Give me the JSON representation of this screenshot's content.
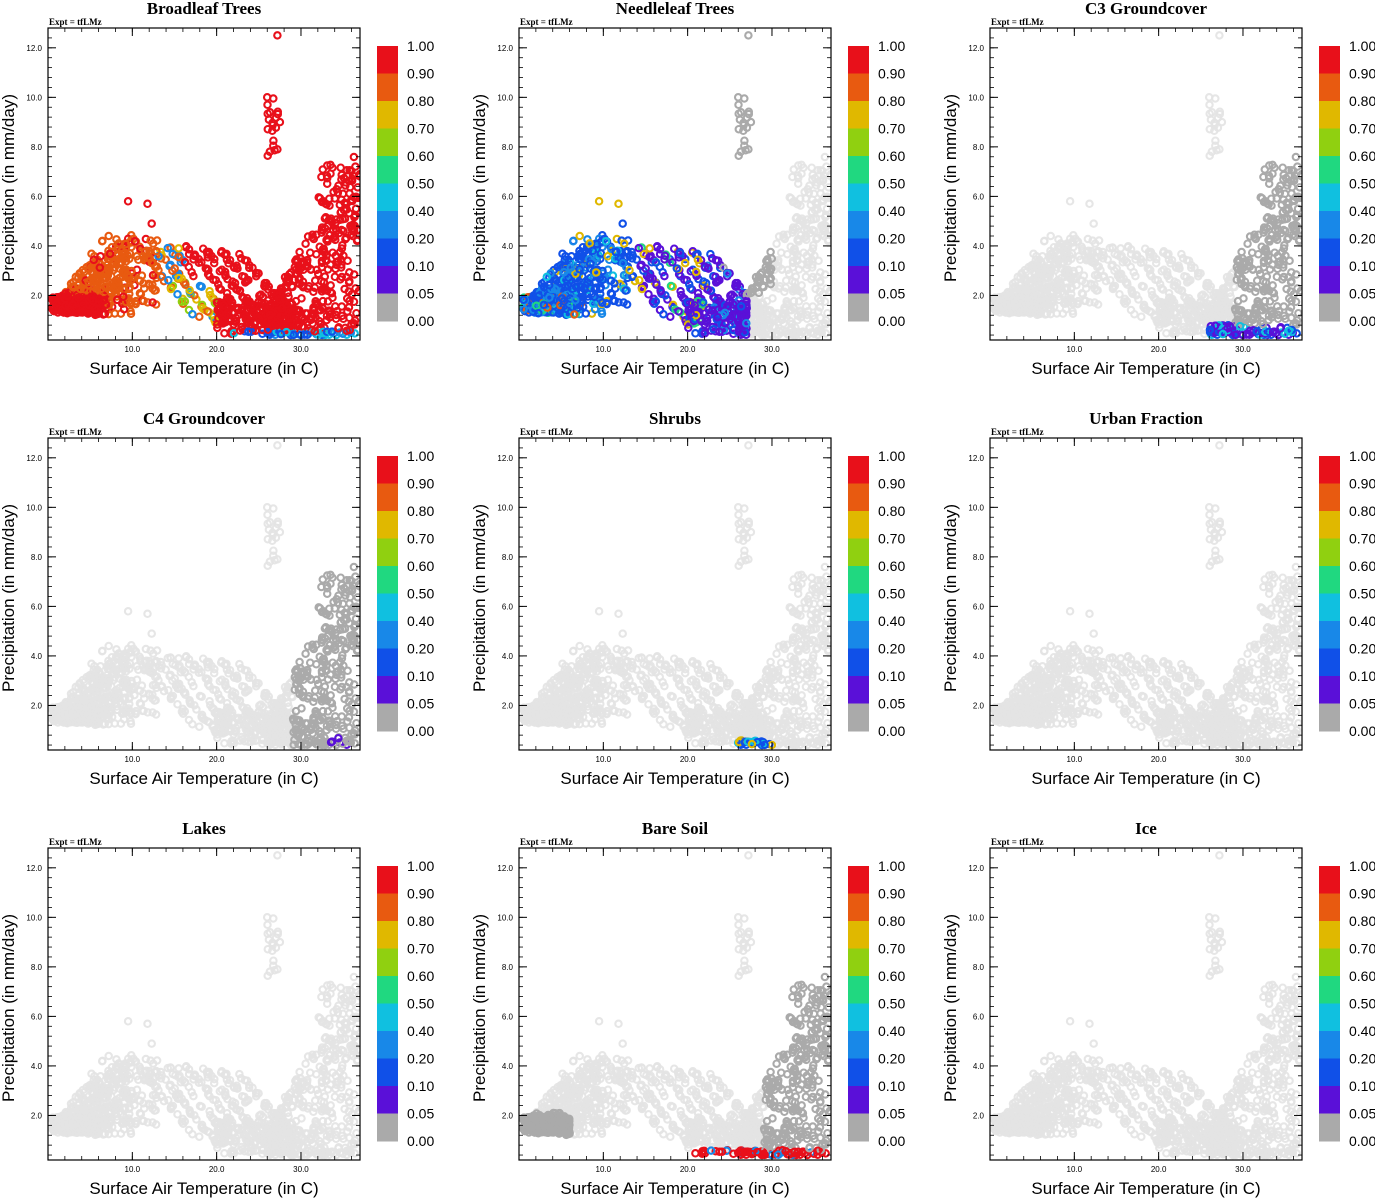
{
  "figure": {
    "expt_label": "Expt = tfLMz",
    "xlabel": "Surface Air Temperature (in C)",
    "ylabel": "Precipitation (in mm/day)"
  },
  "colorbar": {
    "labels": [
      "1.00",
      "0.90",
      "0.80",
      "0.70",
      "0.60",
      "0.50",
      "0.40",
      "0.20",
      "0.10",
      "0.05",
      "0.00"
    ],
    "colors": [
      "#e8101a",
      "#e85a10",
      "#e0b800",
      "#90d010",
      "#20d880",
      "#10c0e0",
      "#1888e8",
      "#1050e8",
      "#5a10d8",
      "#aaaaaa"
    ]
  },
  "chart_data": [
    {
      "type": "scatter",
      "title": "Broadleaf Trees",
      "xlim": [
        0,
        37
      ],
      "ylim": [
        0.2,
        12.8
      ],
      "xticks": [
        "10.0",
        "20.0",
        "30.0"
      ],
      "yticks": [
        "2.0",
        "4.0",
        "6.0",
        "8.0",
        "10.0",
        "12.0"
      ],
      "color_mode": "broadleaf"
    },
    {
      "type": "scatter",
      "title": "Needleleaf Trees",
      "xlim": [
        0,
        37
      ],
      "ylim": [
        0.2,
        12.8
      ],
      "xticks": [
        "10.0",
        "20.0",
        "30.0"
      ],
      "yticks": [
        "2.0",
        "4.0",
        "6.0",
        "8.0",
        "10.0",
        "12.0"
      ],
      "color_mode": "needleleaf"
    },
    {
      "type": "scatter",
      "title": "C3 Groundcover",
      "xlim": [
        0,
        37
      ],
      "ylim": [
        0.2,
        12.8
      ],
      "xticks": [
        "10.0",
        "20.0",
        "30.0"
      ],
      "yticks": [
        "2.0",
        "4.0",
        "6.0",
        "8.0",
        "10.0",
        "12.0"
      ],
      "color_mode": "c3"
    },
    {
      "type": "scatter",
      "title": "C4 Groundcover",
      "xlim": [
        0,
        37
      ],
      "ylim": [
        0.2,
        12.8
      ],
      "xticks": [
        "10.0",
        "20.0",
        "30.0"
      ],
      "yticks": [
        "2.0",
        "4.0",
        "6.0",
        "8.0",
        "10.0",
        "12.0"
      ],
      "color_mode": "c4"
    },
    {
      "type": "scatter",
      "title": "Shrubs",
      "xlim": [
        0,
        37
      ],
      "ylim": [
        0.2,
        12.8
      ],
      "xticks": [
        "10.0",
        "20.0",
        "30.0"
      ],
      "yticks": [
        "2.0",
        "4.0",
        "6.0",
        "8.0",
        "10.0",
        "12.0"
      ],
      "color_mode": "shrubs"
    },
    {
      "type": "scatter",
      "title": "Urban Fraction",
      "xlim": [
        0,
        37
      ],
      "ylim": [
        0.2,
        12.8
      ],
      "xticks": [
        "10.0",
        "20.0",
        "30.0"
      ],
      "yticks": [
        "2.0",
        "4.0",
        "6.0",
        "8.0",
        "10.0",
        "12.0"
      ],
      "color_mode": "none"
    },
    {
      "type": "scatter",
      "title": "Lakes",
      "xlim": [
        0,
        37
      ],
      "ylim": [
        0.2,
        12.8
      ],
      "xticks": [
        "10.0",
        "20.0",
        "30.0"
      ],
      "yticks": [
        "2.0",
        "4.0",
        "6.0",
        "8.0",
        "10.0",
        "12.0"
      ],
      "color_mode": "none"
    },
    {
      "type": "scatter",
      "title": "Bare Soil",
      "xlim": [
        0,
        37
      ],
      "ylim": [
        0.2,
        12.8
      ],
      "xticks": [
        "10.0",
        "20.0",
        "30.0"
      ],
      "yticks": [
        "2.0",
        "4.0",
        "6.0",
        "8.0",
        "10.0",
        "12.0"
      ],
      "color_mode": "baresoil"
    },
    {
      "type": "scatter",
      "title": "Ice",
      "xlim": [
        0,
        37
      ],
      "ylim": [
        0.2,
        12.8
      ],
      "xticks": [
        "10.0",
        "20.0",
        "30.0"
      ],
      "yticks": [
        "2.0",
        "4.0",
        "6.0",
        "8.0",
        "10.0",
        "12.0"
      ],
      "color_mode": "none"
    }
  ]
}
